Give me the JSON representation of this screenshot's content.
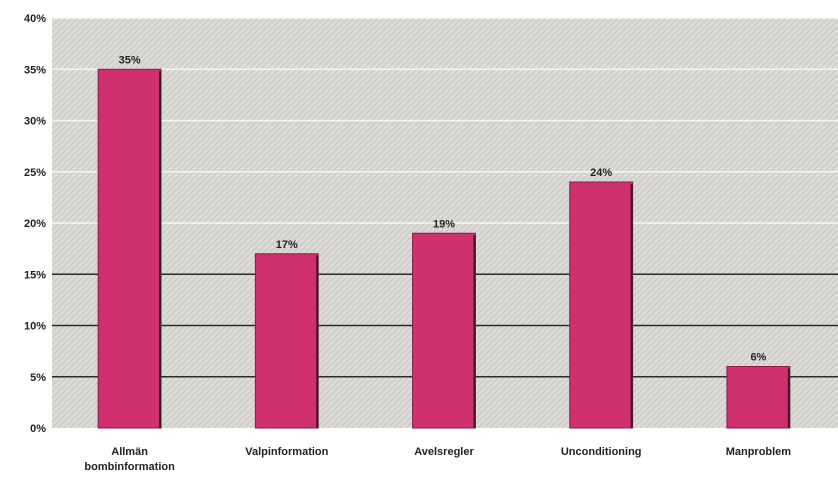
{
  "chart_data": {
    "type": "bar",
    "categories": [
      [
        "Allmän",
        "bombinformation"
      ],
      [
        "Valpinformation"
      ],
      [
        "Avelsregler"
      ],
      [
        "Unconditioning"
      ],
      [
        "Manproblem"
      ]
    ],
    "values": [
      35,
      17,
      19,
      24,
      6
    ],
    "value_labels": [
      "35%",
      "17%",
      "19%",
      "24%",
      "6%"
    ],
    "ylim": [
      0,
      40
    ],
    "yticks": [
      0,
      5,
      10,
      15,
      20,
      25,
      30,
      35,
      40
    ],
    "ytick_labels": [
      "0%",
      "5%",
      "10%",
      "15%",
      "20%",
      "25%",
      "30%",
      "35%",
      "40%"
    ],
    "grid": true,
    "colors": {
      "bar": "#d0306f",
      "bar_dark": "#8a1a47",
      "plot_bg": "#d9d7d3"
    }
  }
}
